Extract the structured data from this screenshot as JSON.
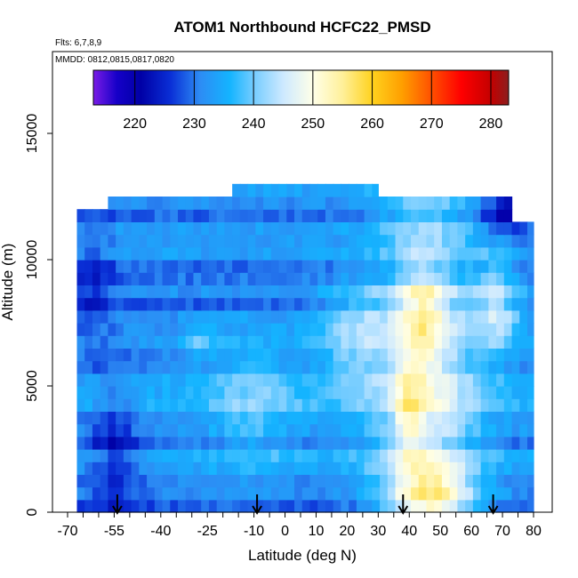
{
  "chart_data": {
    "type": "heatmap",
    "title": "ATOM1 Northbound HCFC22_PMSD",
    "flights_note": "Flts: 6,7,8,9",
    "dates_note": "MMDD: 0812,0815,0817,0820",
    "xlabel": "Latitude (deg N)",
    "ylabel": "Altitude (m)",
    "xlim": [
      -70,
      80
    ],
    "ylim": [
      0,
      17500
    ],
    "x_tick_labels": [
      "-70",
      "-55",
      "-40",
      "-25",
      "-10",
      "0",
      "10",
      "20",
      "30",
      "40",
      "50",
      "60",
      "70",
      "80"
    ],
    "x_tick_values": [
      -70,
      -55,
      -40,
      -25,
      -10,
      0,
      10,
      20,
      30,
      40,
      50,
      60,
      70,
      80
    ],
    "y_tick_labels": [
      "0",
      "5000",
      "10000",
      "15000"
    ],
    "y_tick_values": [
      0,
      5000,
      10000,
      15000
    ],
    "colorbar": {
      "range": [
        213,
        283
      ],
      "tick_labels": [
        "220",
        "230",
        "240",
        "250",
        "260",
        "270",
        "280"
      ],
      "tick_values": [
        220,
        230,
        240,
        250,
        260,
        270,
        280
      ],
      "stops": [
        {
          "v": 213,
          "color": "#7a1ce6"
        },
        {
          "v": 217,
          "color": "#1500c8"
        },
        {
          "v": 221,
          "color": "#0000a6"
        },
        {
          "v": 226,
          "color": "#0a2fd6"
        },
        {
          "v": 231,
          "color": "#2d8cf4"
        },
        {
          "v": 236,
          "color": "#14b4ff"
        },
        {
          "v": 240,
          "color": "#74ccff"
        },
        {
          "v": 245,
          "color": "#cde9ff"
        },
        {
          "v": 250,
          "color": "#ffffe8"
        },
        {
          "v": 255,
          "color": "#fff09a"
        },
        {
          "v": 260,
          "color": "#ffd21e"
        },
        {
          "v": 265,
          "color": "#ff9f00"
        },
        {
          "v": 270,
          "color": "#ff5000"
        },
        {
          "v": 275,
          "color": "#ff0000"
        },
        {
          "v": 280,
          "color": "#c40000"
        },
        {
          "v": 283,
          "color": "#8c1e1e"
        }
      ]
    },
    "sounding_latitudes": [
      -54,
      -9,
      38,
      67
    ],
    "grid": false,
    "legend_position": "top"
  }
}
